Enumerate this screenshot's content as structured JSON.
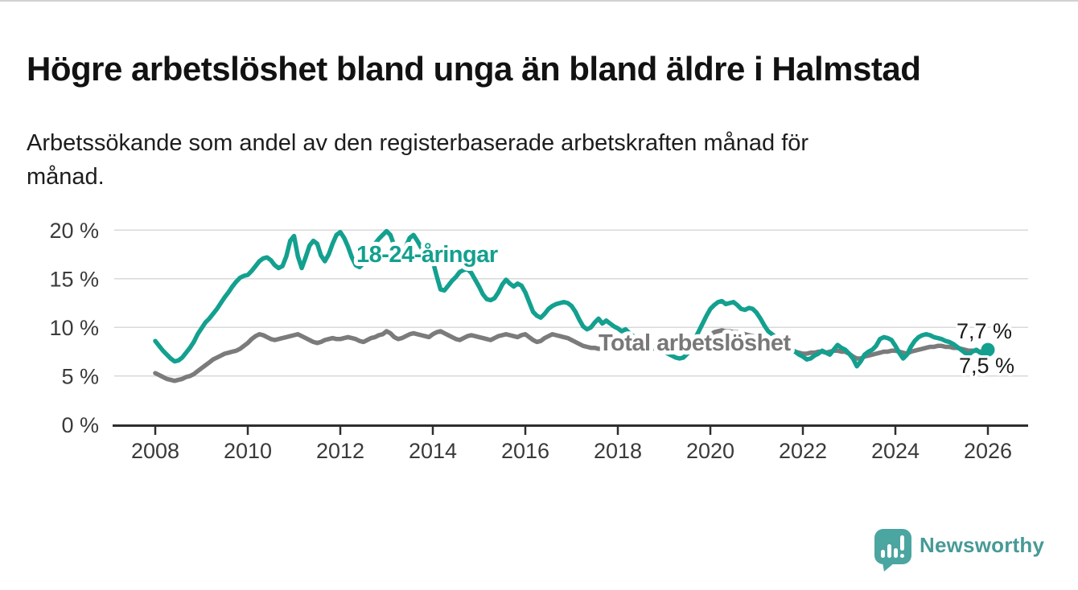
{
  "header": {
    "title": "Högre arbetslöshet bland unga än bland äldre i Halmstad",
    "subtitle": "Arbetssökande som andel av den registerbaserade arbetskraften månad för\nmånad."
  },
  "chart_data": {
    "type": "line",
    "title": "Högre arbetslöshet bland unga än bland äldre i Halmstad",
    "subtitle": "Arbetssökande som andel av den registerbaserade arbetskraften månad för månad.",
    "unit": "%",
    "decimal_separator": ",",
    "grid": "horizontal",
    "ylim": [
      0,
      21.5
    ],
    "x_start_year": 2008,
    "points_per_year": 12,
    "x_ticks": [
      {
        "year": 2008,
        "label": "2008"
      },
      {
        "year": 2010,
        "label": "2010"
      },
      {
        "year": 2012,
        "label": "2012"
      },
      {
        "year": 2014,
        "label": "2014"
      },
      {
        "year": 2016,
        "label": "2016"
      },
      {
        "year": 2018,
        "label": "2018"
      },
      {
        "year": 2020,
        "label": "2020"
      },
      {
        "year": 2022,
        "label": "2022"
      },
      {
        "year": 2024,
        "label": "2024"
      },
      {
        "year": 2026,
        "label": "2026"
      }
    ],
    "y_ticks": [
      {
        "value": 0,
        "label": "0 %"
      },
      {
        "value": 5,
        "label": "5 %"
      },
      {
        "value": 10,
        "label": "10 %"
      },
      {
        "value": 15,
        "label": "15 %"
      },
      {
        "value": 20,
        "label": "20 %"
      }
    ],
    "colors": {
      "youth": "#13a08f",
      "total": "#7b7b7b",
      "gridline": "#d9d9d9",
      "axis": "#2e2e2e",
      "tick_text": "#3a3a3a",
      "end_label_text": "#1a1a1a"
    },
    "series": [
      {
        "name": "18-24-åringar",
        "color": "#13a08f",
        "end_label": "7,7 %",
        "end_dot": true,
        "values": [
          8.6,
          8.1,
          7.6,
          7.2,
          6.8,
          6.5,
          6.6,
          6.9,
          7.4,
          7.9,
          8.5,
          9.3,
          9.9,
          10.5,
          10.9,
          11.4,
          11.9,
          12.5,
          13.1,
          13.6,
          14.2,
          14.7,
          15.1,
          15.3,
          15.4,
          15.8,
          16.3,
          16.8,
          17.1,
          17.2,
          16.9,
          16.4,
          16.1,
          16.3,
          17.3,
          18.9,
          19.4,
          17.3,
          16.1,
          17.2,
          18.4,
          18.9,
          18.6,
          17.4,
          16.8,
          17.5,
          18.6,
          19.5,
          19.8,
          19.2,
          18.3,
          17.2,
          16.4,
          16.2,
          16.6,
          17.3,
          18.0,
          18.6,
          19.1,
          19.5,
          19.9,
          19.5,
          18.4,
          16.7,
          17.4,
          18.3,
          19.2,
          19.5,
          18.9,
          18.2,
          17.6,
          17.1,
          16.8,
          15.3,
          13.9,
          13.8,
          14.3,
          14.8,
          15.2,
          15.7,
          15.9,
          16.0,
          15.6,
          14.9,
          14.2,
          13.4,
          12.9,
          12.8,
          13.0,
          13.6,
          14.4,
          14.9,
          14.5,
          14.2,
          14.5,
          14.3,
          13.6,
          12.6,
          11.6,
          11.2,
          11.0,
          11.4,
          11.9,
          12.2,
          12.4,
          12.5,
          12.6,
          12.5,
          12.2,
          11.6,
          10.8,
          10.1,
          9.8,
          10.0,
          10.5,
          10.9,
          10.4,
          10.7,
          10.4,
          10.1,
          9.9,
          9.6,
          9.8,
          9.4,
          9.1,
          8.8,
          8.5,
          8.3,
          8.1,
          7.9,
          7.8,
          7.7,
          7.6,
          7.3,
          7.1,
          6.9,
          6.8,
          6.9,
          7.3,
          8.0,
          8.8,
          9.6,
          10.4,
          11.2,
          11.9,
          12.3,
          12.6,
          12.7,
          12.4,
          12.5,
          12.6,
          12.3,
          11.9,
          11.8,
          12.0,
          11.9,
          11.5,
          10.9,
          10.2,
          9.6,
          9.3,
          9.0,
          8.7,
          8.4,
          8.1,
          7.8,
          7.5,
          7.2,
          7.0,
          6.7,
          6.8,
          7.1,
          7.3,
          7.6,
          7.4,
          7.2,
          7.7,
          8.2,
          7.9,
          7.7,
          7.3,
          6.8,
          6.0,
          6.5,
          7.2,
          7.5,
          7.7,
          8.1,
          8.8,
          9.0,
          8.9,
          8.7,
          8.1,
          7.4,
          6.8,
          7.2,
          8.0,
          8.6,
          9.0,
          9.2,
          9.3,
          9.2,
          9.0,
          8.9,
          8.8,
          8.6,
          8.5,
          8.3,
          8.0,
          7.7,
          7.4,
          7.2,
          7.5,
          7.7,
          7.4,
          7.3,
          7.7
        ]
      },
      {
        "name": "Total arbetslöshet",
        "color": "#7b7b7b",
        "end_label": "7,5 %",
        "end_dot": false,
        "values": [
          5.3,
          5.1,
          4.9,
          4.7,
          4.6,
          4.5,
          4.6,
          4.7,
          4.9,
          5.0,
          5.2,
          5.5,
          5.8,
          6.1,
          6.4,
          6.7,
          6.9,
          7.1,
          7.3,
          7.4,
          7.5,
          7.6,
          7.8,
          8.1,
          8.4,
          8.8,
          9.1,
          9.3,
          9.2,
          9.0,
          8.8,
          8.7,
          8.8,
          8.9,
          9.0,
          9.1,
          9.2,
          9.3,
          9.1,
          8.9,
          8.7,
          8.5,
          8.4,
          8.5,
          8.7,
          8.8,
          8.9,
          8.8,
          8.8,
          8.9,
          9.0,
          8.9,
          8.8,
          8.6,
          8.5,
          8.7,
          8.9,
          9.0,
          9.2,
          9.3,
          9.6,
          9.4,
          9.0,
          8.8,
          8.9,
          9.1,
          9.3,
          9.4,
          9.3,
          9.2,
          9.1,
          9.0,
          9.3,
          9.5,
          9.6,
          9.4,
          9.2,
          9.0,
          8.8,
          8.7,
          8.9,
          9.1,
          9.2,
          9.1,
          9.0,
          8.9,
          8.8,
          8.7,
          8.9,
          9.1,
          9.2,
          9.3,
          9.2,
          9.1,
          9.0,
          9.2,
          9.3,
          9.0,
          8.7,
          8.5,
          8.6,
          8.9,
          9.1,
          9.3,
          9.2,
          9.1,
          9.0,
          8.9,
          8.7,
          8.5,
          8.3,
          8.1,
          8.0,
          7.9,
          7.9,
          7.8,
          7.8,
          7.7,
          7.7,
          7.7,
          7.7,
          7.7,
          7.6,
          7.6,
          7.6,
          7.6,
          7.7,
          7.7,
          7.8,
          7.8,
          7.9,
          7.9,
          7.9,
          7.8,
          7.8,
          7.9,
          8.0,
          8.0,
          8.1,
          8.2,
          8.3,
          8.4,
          8.6,
          8.9,
          9.2,
          9.5,
          9.6,
          9.7,
          9.6,
          9.6,
          9.5,
          9.5,
          9.4,
          9.3,
          9.2,
          9.1,
          9.0,
          8.8,
          8.6,
          8.4,
          8.2,
          8.0,
          7.9,
          7.8,
          7.7,
          7.6,
          7.5,
          7.4,
          7.3,
          7.3,
          7.4,
          7.4,
          7.5,
          7.5,
          7.4,
          7.5,
          7.6,
          7.6,
          7.5,
          7.5,
          7.3,
          7.0,
          6.8,
          6.8,
          7.0,
          7.1,
          7.2,
          7.3,
          7.4,
          7.5,
          7.5,
          7.6,
          7.6,
          7.5,
          7.4,
          7.3,
          7.5,
          7.6,
          7.7,
          7.8,
          7.9,
          8.0,
          8.0,
          8.1,
          8.1,
          8.0,
          8.0,
          7.9,
          7.9,
          7.8,
          7.7,
          7.6,
          7.6,
          7.6,
          7.5,
          7.5,
          7.5
        ]
      }
    ]
  },
  "footer": {
    "brand": "Newsworthy",
    "brand_color": "#479a97",
    "logo_icon": "speech-bubble-bar-chart"
  }
}
